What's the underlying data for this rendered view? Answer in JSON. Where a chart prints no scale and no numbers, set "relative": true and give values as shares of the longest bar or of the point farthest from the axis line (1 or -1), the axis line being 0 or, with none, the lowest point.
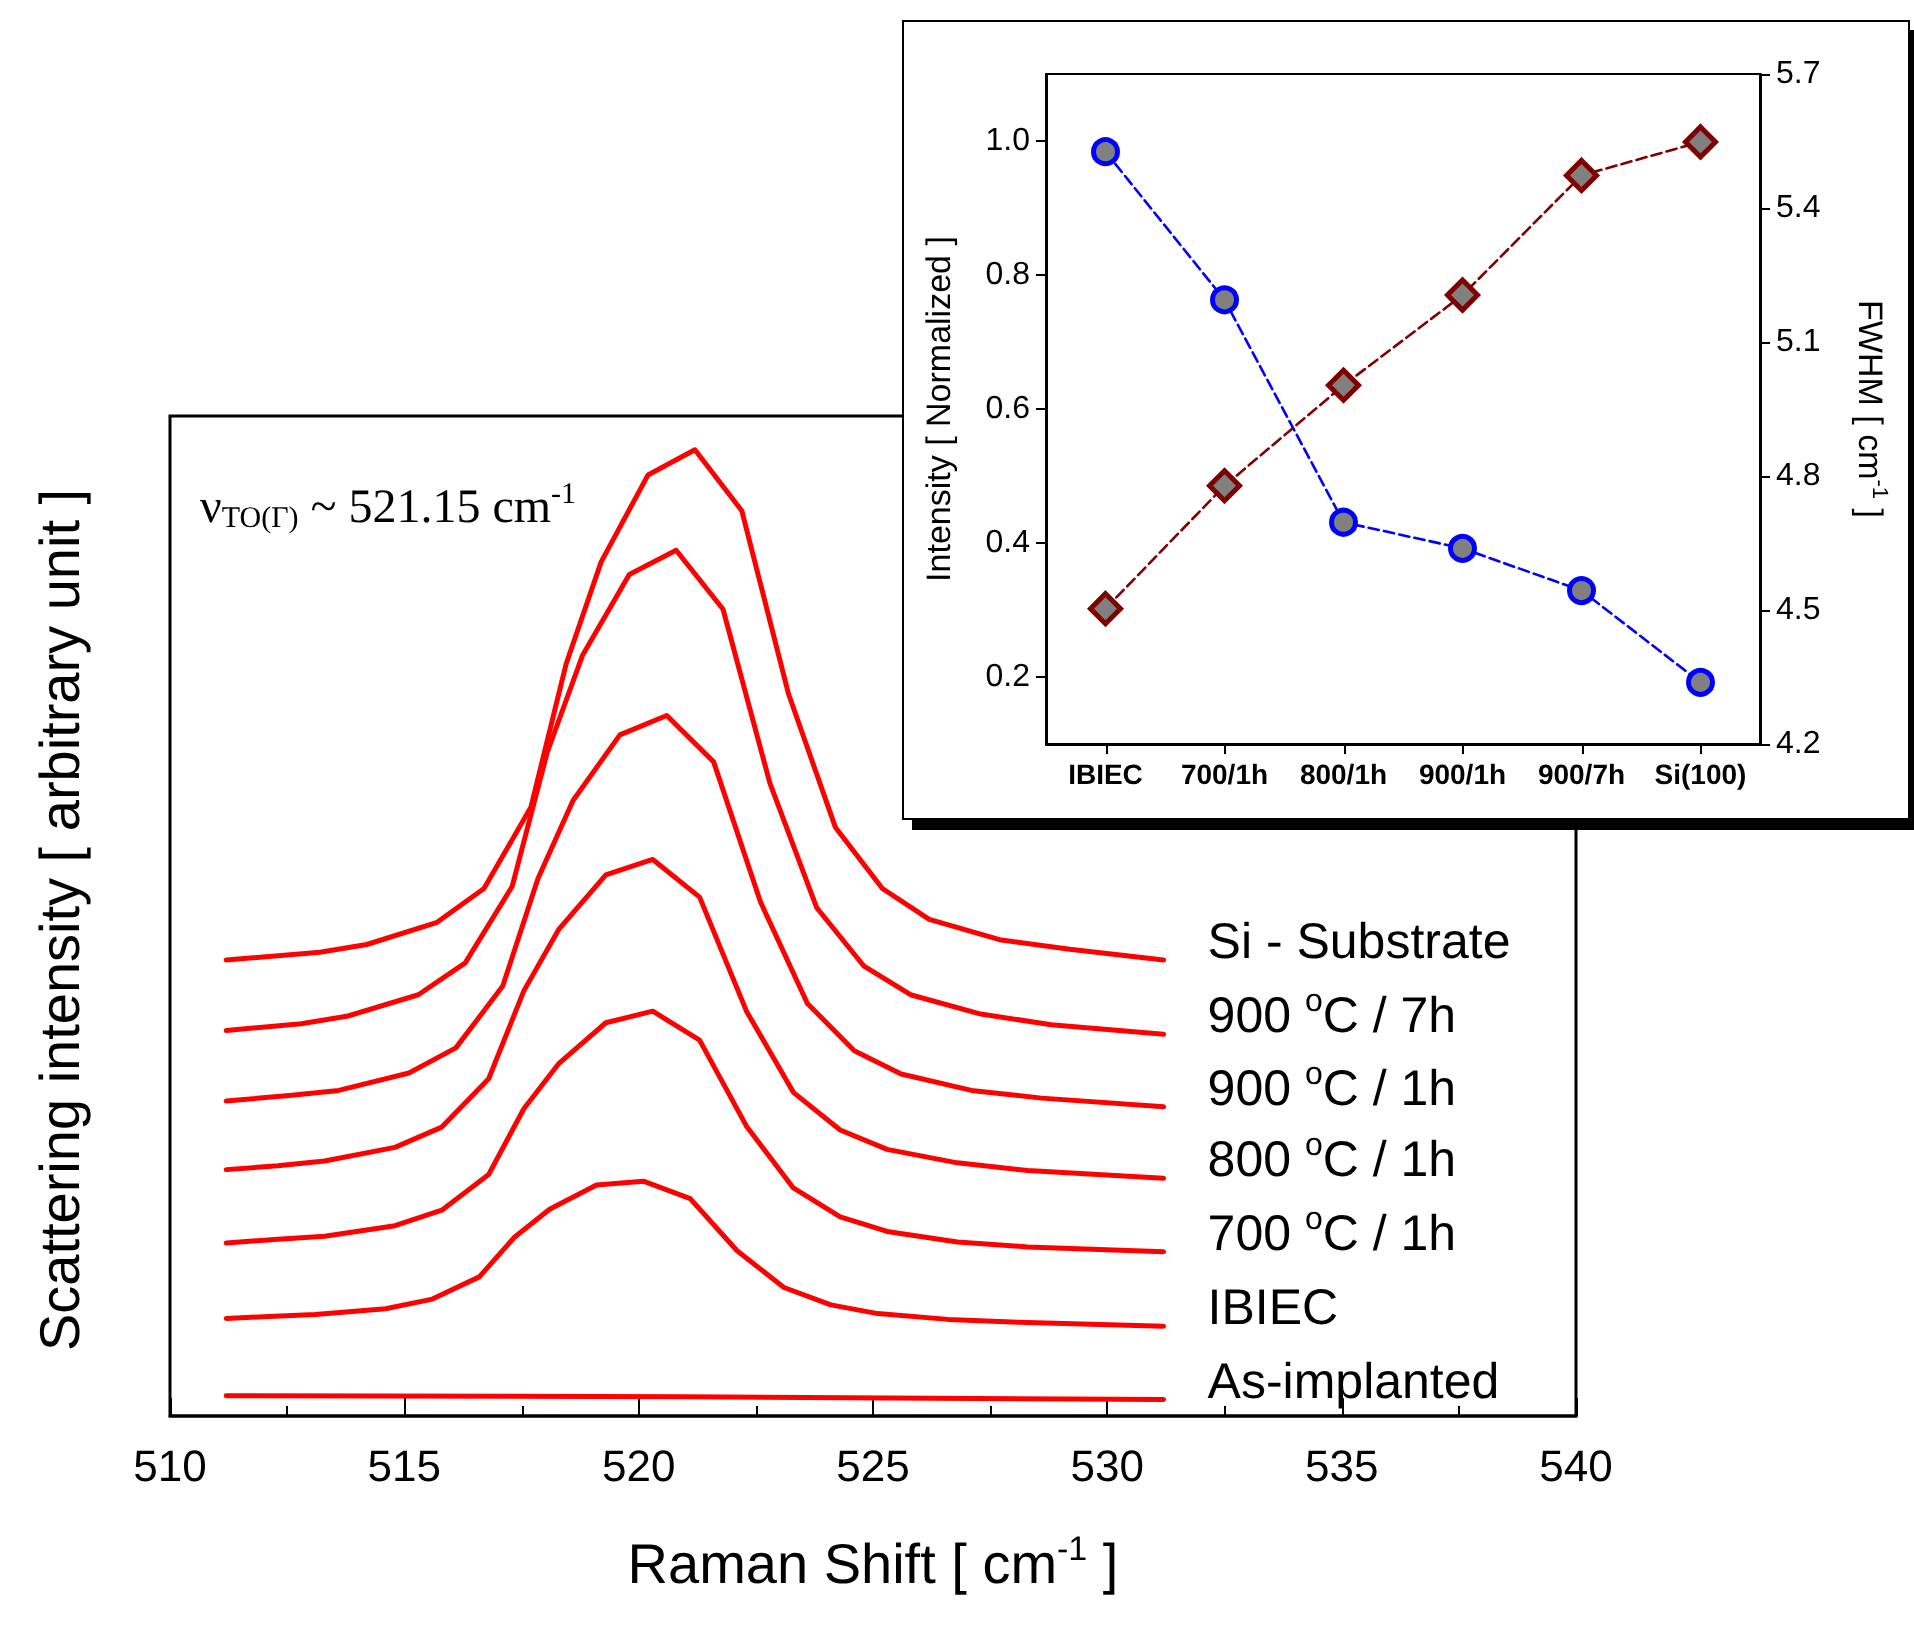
{
  "chart_data": [
    {
      "type": "line",
      "relative": true,
      "xlabel": "Raman Shift [ cm$^{-1}$ ]",
      "ylabel": "Scattering intensity [ arbitrary unit ]",
      "annotations": [
        "ν$_{TO(Γ)}$ ~ 521.15 cm$^{-1}$"
      ],
      "xlim": [
        510,
        540
      ],
      "xticks": [
        510,
        515,
        520,
        525,
        530,
        535,
        540
      ],
      "grid": false,
      "legend": false,
      "marker": "none",
      "line_style": "solid",
      "series": [
        {
          "name": "Si - Substrate",
          "color": "#ff0000",
          "x": [
            511.2,
            513.2,
            514.2,
            515.7,
            516.7,
            517.7,
            518.45,
            519.2,
            520.2,
            521.2,
            522.2,
            523.2,
            524.2,
            525.2,
            526.2,
            527.7,
            529.2,
            531.2
          ],
          "values": [
            0.472,
            0.48,
            0.488,
            0.511,
            0.546,
            0.63,
            0.778,
            0.884,
            0.974,
            1.0,
            0.937,
            0.747,
            0.609,
            0.546,
            0.514,
            0.493,
            0.483,
            0.472
          ]
        },
        {
          "name": "900 $^{o}$C / 7h",
          "color": "#ff0000",
          "x": [
            511.2,
            512.8,
            513.8,
            515.3,
            516.3,
            517.3,
            518.05,
            518.8,
            519.8,
            520.8,
            521.8,
            522.8,
            523.8,
            524.8,
            525.8,
            527.3,
            528.8,
            531.2
          ],
          "values": [
            0.399,
            0.406,
            0.414,
            0.436,
            0.469,
            0.548,
            0.687,
            0.787,
            0.871,
            0.896,
            0.835,
            0.655,
            0.526,
            0.466,
            0.436,
            0.416,
            0.405,
            0.395
          ]
        },
        {
          "name": "900 $^{o}$C / 1h",
          "color": "#ff0000",
          "x": [
            511.2,
            512.6,
            513.6,
            515.1,
            516.1,
            517.1,
            517.85,
            518.6,
            519.6,
            520.6,
            521.6,
            522.6,
            523.6,
            524.6,
            525.6,
            527.1,
            528.6,
            531.2
          ],
          "values": [
            0.326,
            0.332,
            0.337,
            0.355,
            0.381,
            0.445,
            0.556,
            0.637,
            0.705,
            0.725,
            0.677,
            0.532,
            0.427,
            0.378,
            0.354,
            0.337,
            0.329,
            0.32
          ]
        },
        {
          "name": "800 $^{o}$C / 1h",
          "color": "#ff0000",
          "x": [
            511.2,
            512.3,
            513.3,
            514.8,
            515.8,
            516.8,
            517.55,
            518.3,
            519.3,
            520.3,
            521.3,
            522.3,
            523.3,
            524.3,
            525.3,
            526.8,
            528.3,
            531.2
          ],
          "values": [
            0.255,
            0.259,
            0.264,
            0.278,
            0.299,
            0.349,
            0.44,
            0.504,
            0.56,
            0.576,
            0.537,
            0.419,
            0.335,
            0.296,
            0.276,
            0.262,
            0.254,
            0.246
          ]
        },
        {
          "name": "700 $^{o}$C / 1h",
          "color": "#ff0000",
          "x": [
            511.2,
            512.3,
            513.3,
            514.8,
            515.8,
            516.8,
            517.55,
            518.3,
            519.3,
            520.3,
            521.3,
            522.3,
            523.3,
            524.3,
            525.3,
            526.8,
            528.3,
            531.2
          ],
          "values": [
            0.179,
            0.183,
            0.186,
            0.197,
            0.213,
            0.25,
            0.318,
            0.365,
            0.407,
            0.419,
            0.389,
            0.3,
            0.236,
            0.206,
            0.191,
            0.18,
            0.175,
            0.17
          ]
        },
        {
          "name": "IBIEC",
          "color": "#ff0000",
          "x": [
            511.2,
            512.1,
            513.1,
            514.6,
            515.6,
            516.6,
            517.35,
            518.1,
            519.1,
            520.1,
            521.1,
            522.1,
            523.1,
            524.1,
            525.1,
            526.6,
            528.1,
            531.2
          ],
          "values": [
            0.101,
            0.103,
            0.105,
            0.111,
            0.121,
            0.144,
            0.185,
            0.214,
            0.239,
            0.243,
            0.225,
            0.171,
            0.133,
            0.115,
            0.106,
            0.1,
            0.097,
            0.093
          ]
        },
        {
          "name": "As-implanted",
          "color": "#ff0000",
          "x": [
            511.2,
            521,
            531.2
          ],
          "values": [
            0.021,
            0.02,
            0.017
          ]
        }
      ]
    },
    {
      "type": "line",
      "ylabel": "Intensity [ Normalized ]",
      "y2label": "FWHM [ cm$^{-1}$ ]",
      "categories": [
        "IBIEC",
        "700/1h",
        "800/1h",
        "900/1h",
        "900/7h",
        "Si(100)"
      ],
      "ylim": [
        0.1,
        1.1
      ],
      "yticks": [
        0.2,
        0.4,
        0.6,
        0.8,
        {
          "value": 1,
          "label": "1.0"
        }
      ],
      "y2lim": [
        4.2,
        5.7
      ],
      "y2ticks": [
        4.2,
        4.5,
        4.8,
        5.1,
        5.4,
        5.7
      ],
      "grid": false,
      "legend": false,
      "line_style": "dashed",
      "series": [
        {
          "color": "#0000ff",
          "marker": "circle",
          "values": [
            0.984,
            0.763,
            0.431,
            0.392,
            0.329,
            0.192
          ]
        },
        {
          "color": "#800000",
          "marker": "diamond",
          "axis": "y2",
          "values": [
            4.503,
            4.778,
            5.003,
            5.205,
            5.473,
            5.548
          ]
        }
      ]
    }
  ]
}
